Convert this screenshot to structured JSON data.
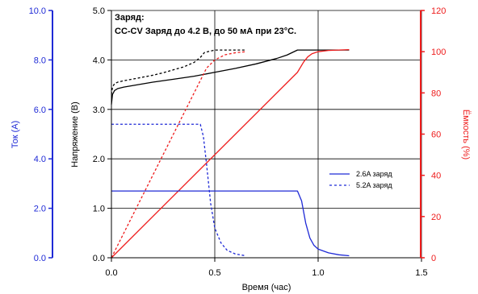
{
  "chart_data": {
    "type": "line",
    "title": "",
    "annotation": {
      "line1": "Заряд:",
      "line2": "CC-CV Заряд до 4.2 В, до 50 мА при 23°C."
    },
    "xlabel": "Время (час)",
    "xlim": [
      0,
      1.5
    ],
    "xticks": [
      "0.0",
      "0.5",
      "1.0",
      "1.5"
    ],
    "axes": {
      "voltage": {
        "label": "Напряжение (В)",
        "lim": [
          0,
          5
        ],
        "ticks": [
          "0.0",
          "1.0",
          "2.0",
          "3.0",
          "4.0",
          "5.0"
        ],
        "color": "#000000",
        "side": "left-inner"
      },
      "current": {
        "label": "Ток (А)",
        "lim": [
          0,
          10
        ],
        "ticks": [
          "0.0",
          "2.0",
          "4.0",
          "6.0",
          "8.0",
          "10.0"
        ],
        "color": "#1f2ad6",
        "side": "left-outer"
      },
      "capacity": {
        "label": "Ёмкость (%)",
        "lim": [
          0,
          120
        ],
        "ticks": [
          "0",
          "20",
          "40",
          "60",
          "80",
          "100",
          "120"
        ],
        "color": "#ee1c1c",
        "side": "right"
      }
    },
    "grid": true,
    "legend": {
      "position": "right-middle",
      "entries": [
        {
          "label": "2.6A заряд",
          "style": "solid"
        },
        {
          "label": "5.2A заряд",
          "style": "dashed"
        }
      ]
    },
    "series": [
      {
        "name": "2.6A заряд",
        "quantity": "voltage",
        "axis": "voltage",
        "color": "#000000",
        "style": "solid",
        "x": [
          0,
          0.005,
          0.015,
          0.03,
          0.06,
          0.1,
          0.2,
          0.3,
          0.4,
          0.5,
          0.6,
          0.7,
          0.8,
          0.85,
          0.9,
          0.92,
          1.15
        ],
        "y": [
          3.1,
          3.3,
          3.38,
          3.42,
          3.45,
          3.48,
          3.55,
          3.61,
          3.67,
          3.75,
          3.83,
          3.92,
          4.03,
          4.1,
          4.2,
          4.2,
          4.2
        ]
      },
      {
        "name": "5.2A заряд",
        "quantity": "voltage",
        "axis": "voltage",
        "color": "#000000",
        "style": "dashed",
        "x": [
          0,
          0.005,
          0.015,
          0.03,
          0.06,
          0.1,
          0.15,
          0.2,
          0.25,
          0.3,
          0.35,
          0.4,
          0.43,
          0.45,
          0.5,
          0.55,
          0.6,
          0.65
        ],
        "y": [
          3.3,
          3.45,
          3.52,
          3.55,
          3.58,
          3.61,
          3.65,
          3.69,
          3.74,
          3.8,
          3.86,
          3.95,
          4.05,
          4.15,
          4.2,
          4.2,
          4.2,
          4.2
        ]
      },
      {
        "name": "2.6A заряд",
        "quantity": "capacity",
        "axis": "capacity",
        "color": "#ee1c1c",
        "style": "solid",
        "x": [
          0,
          0.9,
          0.93,
          0.95,
          0.97,
          1.0,
          1.05,
          1.1,
          1.15
        ],
        "y": [
          0,
          90,
          95,
          97.5,
          99,
          100,
          100.6,
          100.8,
          101
        ]
      },
      {
        "name": "5.2A заряд",
        "quantity": "capacity",
        "axis": "capacity",
        "color": "#ee1c1c",
        "style": "dashed",
        "x": [
          0,
          0.43,
          0.46,
          0.5,
          0.55,
          0.6,
          0.65
        ],
        "y": [
          0,
          86,
          92,
          96,
          98.5,
          99.5,
          100
        ]
      },
      {
        "name": "2.6A заряд",
        "quantity": "current",
        "axis": "current",
        "color": "#1f2ad6",
        "style": "solid",
        "x": [
          0,
          0.9,
          0.92,
          0.94,
          0.96,
          0.98,
          1.0,
          1.05,
          1.1,
          1.15
        ],
        "y": [
          2.7,
          2.7,
          2.3,
          1.4,
          0.8,
          0.5,
          0.35,
          0.2,
          0.12,
          0.08
        ]
      },
      {
        "name": "5.2A заряд",
        "quantity": "current",
        "axis": "current",
        "color": "#1f2ad6",
        "style": "dashed",
        "x": [
          0,
          0.43,
          0.445,
          0.46,
          0.48,
          0.5,
          0.53,
          0.56,
          0.6,
          0.65
        ],
        "y": [
          5.4,
          5.4,
          4.9,
          3.8,
          2.2,
          1.2,
          0.6,
          0.3,
          0.15,
          0.08
        ]
      }
    ]
  }
}
